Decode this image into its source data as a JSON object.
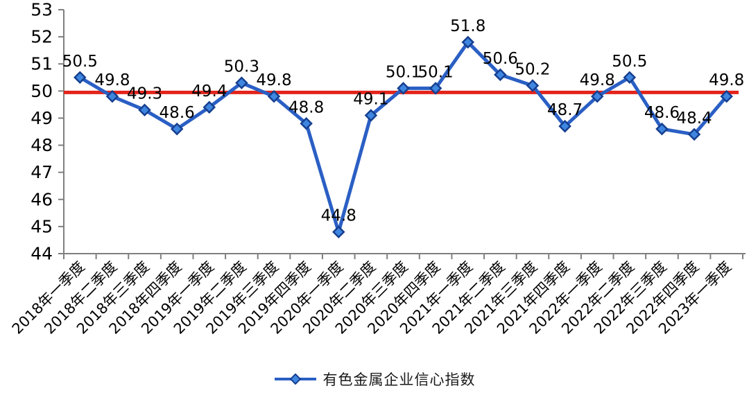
{
  "chart_data": {
    "type": "line",
    "title": "",
    "categories": [
      "2018年一季度",
      "2018年二季度",
      "2018年三季度",
      "2018年四季度",
      "2019年一季度",
      "2019年二季度",
      "2019年三季度",
      "2019年四季度",
      "2020年一季度",
      "2020年二季度",
      "2020年三季度",
      "2020年四季度",
      "2021年一季度",
      "2021年二季度",
      "2021年三季度",
      "2021年四季度",
      "2022年一季度",
      "2022年二季度",
      "2022年三季度",
      "2022年四季度",
      "2023年一季度"
    ],
    "series": [
      {
        "name": "有色金属企业信心指数",
        "values": [
          50.5,
          49.8,
          49.3,
          48.6,
          49.4,
          50.3,
          49.8,
          48.8,
          44.8,
          49.1,
          50.1,
          50.1,
          51.8,
          50.6,
          50.2,
          48.7,
          49.8,
          50.5,
          48.6,
          48.4,
          49.8
        ]
      }
    ],
    "reference_line": {
      "value": 50
    },
    "ylim": [
      44,
      53
    ],
    "ytick_step": 1,
    "grid": false,
    "data_labels": true,
    "legend_position": "bottom",
    "marker": "diamond",
    "xlabel": "",
    "ylabel": ""
  },
  "legend": {
    "label": "有色金属企业信心指数"
  },
  "colors": {
    "series_line": "#2a5fc4",
    "marker_fill": "#3f86e0",
    "marker_border": "#163f8f",
    "reference_line": "#e3231a",
    "axis": "#7f7f7f",
    "label_text": "#000000"
  }
}
